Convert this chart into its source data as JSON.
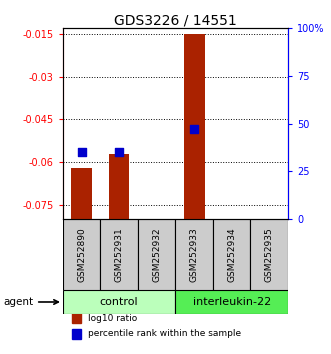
{
  "title": "GDS3226 / 14551",
  "samples": [
    "GSM252890",
    "GSM252931",
    "GSM252932",
    "GSM252933",
    "GSM252934",
    "GSM252935"
  ],
  "log10_ratio": [
    -0.062,
    -0.057,
    null,
    -0.015,
    null,
    null
  ],
  "percentile_rank_pct": [
    35,
    35,
    null,
    47,
    null,
    null
  ],
  "left_yaxis_ticks": [
    -0.015,
    -0.03,
    -0.045,
    -0.06,
    -0.075
  ],
  "left_yaxis_labels": [
    "-0.015",
    "-0.03",
    "-0.045",
    "-0.06",
    "-0.075"
  ],
  "right_yaxis_ticks": [
    0,
    25,
    50,
    75,
    100
  ],
  "right_yaxis_labels": [
    "0",
    "25",
    "50",
    "75",
    "100%"
  ],
  "ylim_left": [
    -0.08,
    -0.013
  ],
  "right_ylim": [
    0,
    100
  ],
  "groups": [
    {
      "label": "control",
      "indices": [
        0,
        1,
        2
      ],
      "color": "#bbffbb"
    },
    {
      "label": "interleukin-22",
      "indices": [
        3,
        4,
        5
      ],
      "color": "#55ee55"
    }
  ],
  "bar_color": "#aa2200",
  "dot_color": "#0000cc",
  "bar_width": 0.55,
  "dot_size": 30,
  "agent_label": "agent",
  "legend_items": [
    {
      "label": "log10 ratio",
      "color": "#aa2200"
    },
    {
      "label": "percentile rank within the sample",
      "color": "#0000cc"
    }
  ],
  "grid_linestyle": "dotted",
  "title_fontsize": 10,
  "tick_fontsize": 7,
  "sample_fontsize": 6.5,
  "group_fontsize": 8,
  "legend_fontsize": 6.5
}
